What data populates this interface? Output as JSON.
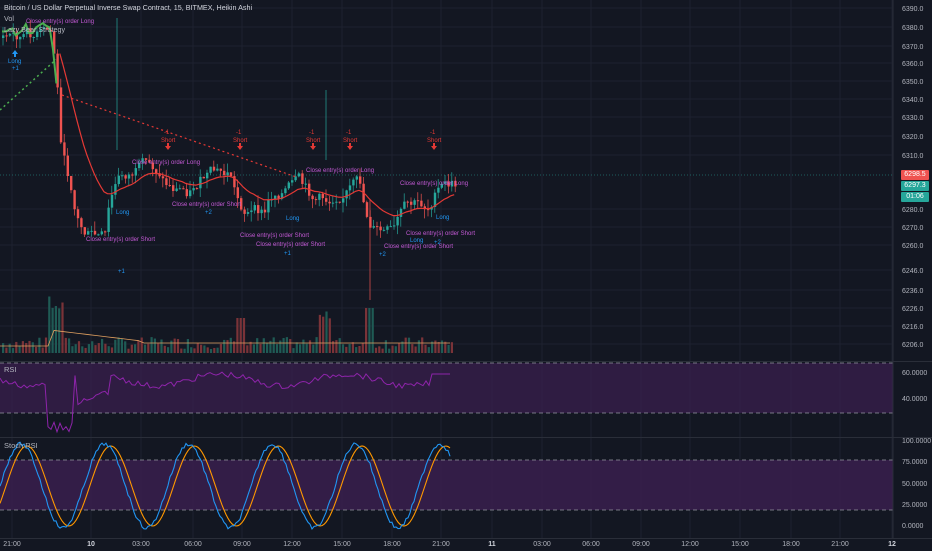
{
  "header": {
    "title": "Bitcoin / US Dollar Perpetual Inverse Swap Contract, 15, BITMEX, Heikin Ashi",
    "vol_label": "Vol",
    "strategy_label": "Lazy Bear Strategy"
  },
  "price_axis": {
    "ticks": [
      "6390.0",
      "6380.0",
      "6370.0",
      "6360.0",
      "6350.0",
      "6340.0",
      "6330.0",
      "6320.0",
      "6310.0",
      "6298.5",
      "6297.3",
      "01:06",
      "6280.0",
      "6270.0",
      "6260.0",
      "6246.0",
      "6236.0",
      "6226.0",
      "6216.0",
      "6206.0"
    ],
    "last_price": "6298.5",
    "mark_price": "6297.3",
    "countdown": "01:06",
    "last_price_color": "#ef5350",
    "mark_price_color": "#26a69a"
  },
  "rsi_pane": {
    "name": "RSI",
    "ticks": [
      "60.0000",
      "40.0000"
    ]
  },
  "stoch_pane": {
    "name": "Stoch RSI",
    "ticks": [
      "100.0000",
      "75.0000",
      "50.0000",
      "25.0000",
      "0.0000"
    ]
  },
  "time_axis": {
    "labels": [
      "21:00",
      "10",
      "03:00",
      "06:00",
      "09:00",
      "12:00",
      "15:00",
      "18:00",
      "21:00",
      "11",
      "03:00",
      "06:00",
      "09:00",
      "12:00",
      "15:00",
      "18:00",
      "21:00",
      "12"
    ]
  },
  "annotations": {
    "long_label": "Long",
    "short_label": "Short",
    "close_long": "Close entry(s) order Long",
    "close_short": "Close entry(s) order Short",
    "plus1": "+1",
    "plus2": "+2",
    "minus1": "-1",
    "minus2": "-2"
  },
  "colors": {
    "background": "#131722",
    "bull": "#26a69a",
    "bear": "#ef5350",
    "rsi_band": "#3a1f4e",
    "rsi_line": "#8e24aa",
    "stoch_k": "#2196f3",
    "stoch_d": "#ff9800",
    "ma_green": "#4caf50",
    "ma_red": "#e53935"
  }
}
